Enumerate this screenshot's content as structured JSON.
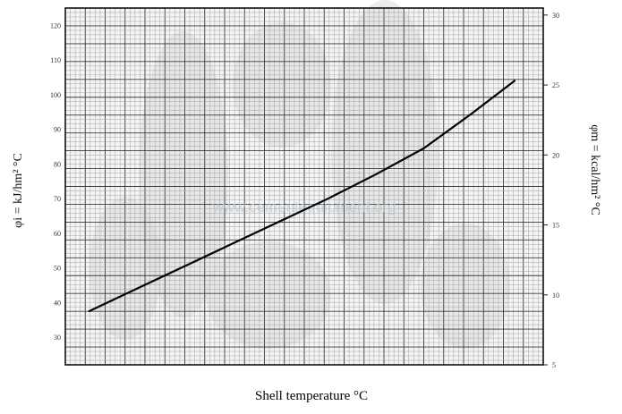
{
  "chart_data": {
    "type": "line",
    "title": "",
    "xlabel": "Shell temperature °C",
    "ylabel_left": "φi = kJ/hm² °C",
    "ylabel_right": "φm = kcal/hm² °C",
    "watermark": "www.cementequipment.org",
    "xlim": [
      0,
      1
    ],
    "ylim_left": [
      22,
      125
    ],
    "ylim_right": [
      5,
      30.5
    ],
    "yticks_left": [
      30,
      40,
      50,
      60,
      70,
      80,
      90,
      100,
      110,
      120
    ],
    "yticks_right": [
      5,
      10,
      15,
      20,
      25,
      30
    ],
    "grid": true,
    "series": [
      {
        "name": "",
        "x": [
          0.05,
          0.15,
          0.25,
          0.35,
          0.45,
          0.55,
          0.65,
          0.75,
          0.85,
          0.94
        ],
        "y": [
          37.5,
          44,
          50.5,
          57,
          63.5,
          70,
          77,
          84.5,
          94.5,
          104
        ]
      }
    ]
  }
}
